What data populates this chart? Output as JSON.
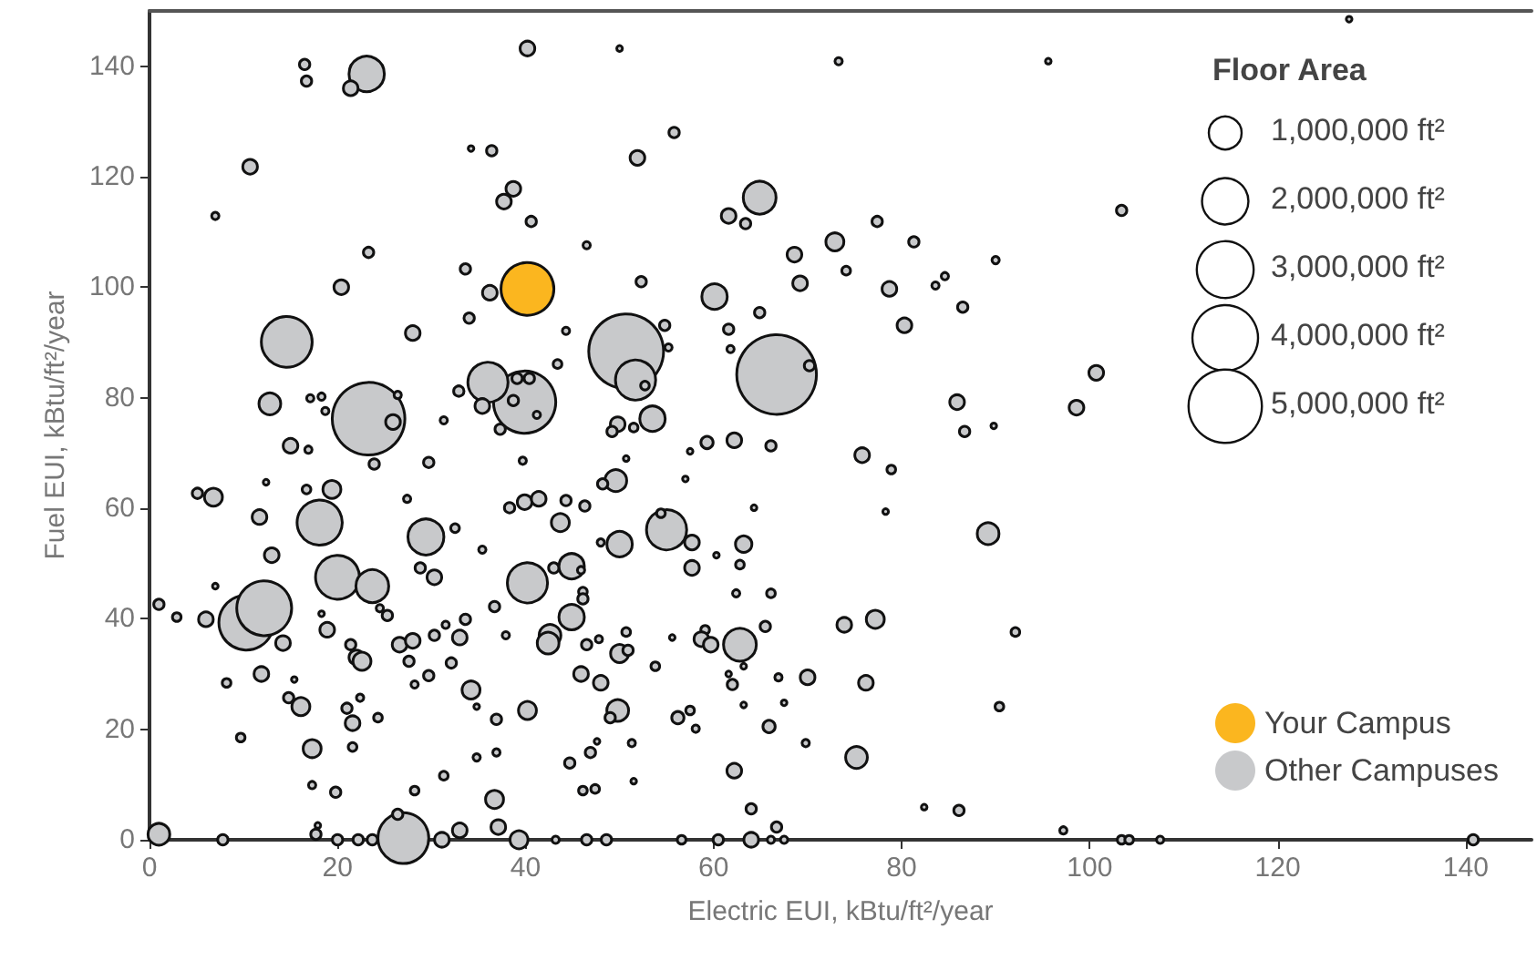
{
  "chart_data": {
    "type": "bubble",
    "xlabel": "Electric EUI, kBtu/ft²/year",
    "ylabel": "Fuel EUI, kBtu/ft²/year",
    "legend_title": "Floor Area",
    "legend": "bottom right",
    "marker": "circle",
    "xlim": [
      0,
      147
    ],
    "ylim": [
      0,
      150
    ],
    "xticks": [
      0,
      20,
      40,
      60,
      80,
      100,
      120,
      140
    ],
    "yticks": [
      0,
      20,
      40,
      60,
      80,
      100,
      120,
      140
    ],
    "size_legend": [
      {
        "value": 1000000,
        "label": "1,000,000 ft²"
      },
      {
        "value": 2000000,
        "label": "2,000,000 ft²"
      },
      {
        "value": 3000000,
        "label": "3,000,000 ft²"
      },
      {
        "value": 4000000,
        "label": "4,000,000 ft²"
      },
      {
        "value": 5000000,
        "label": "5,000,000 ft²"
      }
    ],
    "series": [
      {
        "name": "Other Campuses",
        "color": "#c8c9cb",
        "x": [
          66.7,
          50.7,
          23.3,
          39.9,
          10.3,
          12.2,
          14.6,
          27.0,
          18.1,
          20.0,
          55.0,
          51.7,
          40.2,
          36.0,
          29.4,
          23.1,
          64.9,
          23.7,
          62.8,
          16.5,
          16.7,
          21.4,
          40.2,
          10.7,
          7.0,
          34.2,
          36.4,
          38.7,
          37.7,
          40.6,
          46.5,
          23.3,
          33.6,
          20.4,
          36.2,
          34.0,
          28.0,
          44.3,
          43.4,
          39.1,
          40.4,
          12.8,
          17.1,
          18.3,
          26.4,
          32.9,
          38.7,
          35.4,
          41.2,
          25.9,
          31.3,
          37.3,
          18.7,
          50.0,
          73.3,
          95.6,
          55.8,
          51.9,
          61.6,
          63.4,
          77.4,
          72.9,
          81.3,
          90.0,
          103.4,
          68.6,
          74.1,
          69.2,
          78.7,
          83.6,
          84.6,
          52.3,
          60.1,
          64.9,
          61.6,
          86.5,
          80.3,
          61.8,
          54.8,
          55.2,
          52.7,
          70.2,
          100.7,
          85.9,
          98.6,
          86.7,
          89.8,
          53.5,
          49.8,
          51.5,
          49.2,
          15.0,
          16.9,
          23.9,
          29.7,
          39.7,
          19.4,
          12.4,
          5.1,
          6.8,
          11.7,
          16.7,
          27.4,
          32.5,
          38.3,
          39.9,
          41.4,
          44.3,
          46.3,
          43.7,
          13.0,
          28.8,
          30.3,
          35.4,
          43.0,
          44.9,
          45.9,
          7.0,
          1.0,
          2.9,
          6.0,
          14.2,
          18.3,
          18.9,
          24.5,
          25.3,
          21.4,
          22.0,
          22.6,
          26.6,
          28.0,
          30.3,
          33.0,
          33.6,
          31.5,
          32.1,
          27.6,
          29.7,
          28.2,
          11.9,
          8.2,
          15.4,
          14.8,
          16.1,
          21.0,
          21.6,
          22.4,
          24.3,
          34.2,
          34.8,
          36.9,
          40.2,
          36.7,
          37.9,
          42.6,
          42.4,
          44.9,
          46.1,
          46.1,
          46.5,
          45.9,
          48.0,
          9.7,
          17.3,
          21.6,
          17.3,
          19.8,
          28.2,
          31.3,
          34.8,
          36.9,
          36.7,
          37.1,
          44.7,
          46.9,
          46.1,
          47.4,
          1.0,
          7.8,
          17.9,
          17.7,
          26.4,
          20.0,
          22.2,
          23.7,
          31.1,
          33.0,
          39.3,
          43.2,
          46.5,
          48.6,
          59.3,
          62.2,
          66.1,
          57.5,
          50.7,
          57.0,
          49.6,
          48.2,
          75.8,
          78.9,
          78.3,
          64.3,
          54.4,
          50.0,
          48.0,
          57.7,
          57.7,
          60.3,
          63.2,
          62.8,
          62.4,
          66.1,
          89.2,
          73.9,
          77.2,
          92.1,
          59.1,
          58.7,
          59.7,
          65.5,
          55.6,
          50.7,
          50.0,
          50.9,
          47.8,
          53.8,
          63.2,
          61.6,
          62.0,
          66.9,
          70.0,
          76.2,
          49.8,
          49.0,
          56.2,
          57.5,
          58.1,
          63.2,
          67.5,
          65.9,
          69.8,
          51.3,
          47.6,
          51.5,
          62.2,
          75.2,
          90.4,
          64.0,
          66.7,
          82.4,
          86.1,
          97.2,
          64.0,
          56.6,
          60.5,
          66.1,
          67.5,
          103.4,
          104.2,
          107.5,
          140.8,
          127.6
        ],
        "values": [
          84.2,
          88.4,
          76.2,
          79.2,
          39.3,
          41.9,
          90.1,
          0.3,
          57.4,
          47.5,
          56.1,
          83.2,
          46.5,
          82.8,
          54.8,
          138.6,
          116.2,
          45.9,
          35.3,
          140.3,
          137.3,
          136.0,
          143.2,
          121.8,
          112.9,
          125.1,
          124.7,
          117.8,
          115.5,
          111.9,
          107.6,
          106.3,
          103.3,
          100.0,
          99.0,
          94.4,
          91.7,
          92.1,
          86.1,
          83.5,
          83.5,
          78.9,
          79.9,
          80.2,
          80.5,
          81.2,
          79.5,
          78.5,
          76.9,
          75.6,
          75.9,
          74.3,
          77.6,
          143.2,
          140.9,
          140.9,
          128.0,
          123.4,
          112.9,
          111.5,
          111.9,
          108.2,
          108.2,
          104.9,
          113.9,
          105.9,
          103.0,
          100.7,
          99.7,
          100.3,
          102.0,
          101.0,
          98.3,
          95.4,
          92.4,
          96.4,
          93.1,
          88.8,
          93.1,
          89.1,
          82.2,
          85.8,
          84.5,
          79.2,
          78.2,
          73.9,
          74.9,
          76.2,
          75.2,
          74.6,
          73.9,
          71.3,
          70.6,
          68.0,
          68.3,
          68.6,
          63.4,
          64.7,
          62.7,
          62.0,
          58.4,
          63.4,
          61.7,
          56.4,
          60.1,
          61.1,
          61.7,
          61.4,
          60.4,
          57.4,
          51.5,
          49.2,
          47.5,
          52.5,
          49.2,
          49.5,
          48.8,
          45.9,
          42.6,
          40.3,
          39.9,
          35.6,
          40.9,
          38.0,
          41.9,
          40.6,
          35.3,
          33.0,
          32.3,
          35.3,
          36.0,
          37.0,
          36.6,
          39.9,
          38.9,
          32.0,
          32.3,
          29.7,
          28.1,
          30.0,
          28.4,
          29.0,
          25.7,
          24.1,
          23.8,
          21.1,
          25.7,
          22.1,
          27.1,
          24.1,
          21.8,
          23.4,
          42.2,
          37.0,
          37.0,
          35.6,
          40.3,
          44.9,
          43.6,
          35.3,
          30.0,
          28.4,
          18.5,
          16.5,
          16.8,
          9.9,
          8.6,
          8.9,
          11.6,
          14.9,
          15.8,
          7.3,
          2.3,
          13.9,
          15.8,
          8.9,
          9.2,
          1.0,
          0,
          2.6,
          1.0,
          4.6,
          0,
          0,
          0,
          0,
          1.7,
          0,
          0,
          0,
          0,
          71.9,
          72.3,
          71.3,
          70.3,
          69.0,
          65.3,
          65.0,
          64.4,
          69.6,
          67.0,
          59.4,
          60.1,
          59.1,
          53.5,
          53.8,
          53.8,
          49.2,
          51.5,
          53.5,
          49.8,
          44.6,
          44.6,
          55.4,
          38.9,
          39.9,
          37.6,
          38.0,
          36.3,
          35.3,
          38.6,
          36.6,
          37.6,
          33.7,
          34.3,
          36.3,
          31.4,
          31.4,
          30.0,
          28.1,
          29.4,
          29.4,
          28.4,
          23.4,
          22.1,
          22.1,
          23.4,
          20.1,
          24.4,
          24.8,
          20.5,
          17.5,
          17.5,
          17.8,
          10.6,
          12.5,
          14.9,
          24.1,
          5.6,
          2.3,
          5.9,
          5.3,
          1.7,
          0,
          0,
          0,
          0,
          0,
          0,
          0,
          0,
          0,
          148.5
        ],
        "sizes": [
          5900000,
          5200000,
          4900000,
          3600000,
          2800000,
          2800000,
          2400000,
          2400000,
          1900000,
          1800000,
          1500000,
          1500000,
          1500000,
          1500000,
          1200000,
          1160000,
          1000000,
          1000000,
          1000000,
          100000,
          100000,
          200000,
          200000,
          200000,
          50000,
          30000,
          100000,
          200000,
          200000,
          100000,
          50000,
          100000,
          100000,
          200000,
          200000,
          100000,
          200000,
          50000,
          70000,
          100000,
          100000,
          440000,
          50000,
          50000,
          50000,
          100000,
          100000,
          200000,
          50000,
          200000,
          50000,
          100000,
          50000,
          30000,
          50000,
          30000,
          100000,
          200000,
          200000,
          100000,
          100000,
          300000,
          100000,
          50000,
          100000,
          200000,
          70000,
          200000,
          200000,
          50000,
          50000,
          100000,
          600000,
          100000,
          100000,
          100000,
          200000,
          50000,
          100000,
          50000,
          70000,
          100000,
          200000,
          200000,
          200000,
          100000,
          30000,
          600000,
          200000,
          70000,
          100000,
          200000,
          50000,
          100000,
          100000,
          50000,
          300000,
          30000,
          100000,
          300000,
          200000,
          70000,
          50000,
          70000,
          100000,
          200000,
          200000,
          100000,
          100000,
          300000,
          200000,
          100000,
          200000,
          50000,
          100000,
          600000,
          50000,
          30000,
          100000,
          70000,
          200000,
          200000,
          30000,
          200000,
          50000,
          100000,
          100000,
          200000,
          300000,
          200000,
          200000,
          100000,
          200000,
          100000,
          50000,
          100000,
          100000,
          100000,
          50000,
          200000,
          70000,
          30000,
          100000,
          300000,
          100000,
          200000,
          50000,
          70000,
          300000,
          30000,
          100000,
          300000,
          100000,
          50000,
          440000,
          440000,
          600000,
          70000,
          100000,
          100000,
          200000,
          200000,
          70000,
          300000,
          70000,
          50000,
          100000,
          70000,
          70000,
          50000,
          50000,
          300000,
          200000,
          100000,
          100000,
          70000,
          70000,
          440000,
          100000,
          30000,
          100000,
          100000,
          100000,
          100000,
          100000,
          200000,
          200000,
          300000,
          50000,
          100000,
          100000,
          140000,
          200000,
          100000,
          30000,
          30000,
          30000,
          440000,
          100000,
          200000,
          70000,
          30000,
          30000,
          70000,
          600000,
          50000,
          200000,
          200000,
          30000,
          250000,
          70000,
          50000,
          70000,
          440000,
          200000,
          300000,
          70000,
          70000,
          200000,
          200000,
          100000,
          30000,
          70000,
          300000,
          100000,
          50000,
          70000,
          30000,
          30000,
          100000,
          50000,
          200000,
          200000,
          440000,
          100000,
          140000,
          70000,
          50000,
          30000,
          30000,
          140000,
          50000,
          50000,
          30000,
          30000,
          200000,
          440000,
          70000,
          100000,
          100000,
          30000,
          100000,
          50000,
          200000,
          70000,
          100000,
          50000,
          50000,
          70000,
          70000,
          50000,
          100000,
          30000
        ]
      },
      {
        "name": "Your Campus",
        "color": "#fbb61f",
        "x": [
          40.2
        ],
        "values": [
          99.7
        ],
        "sizes": [
          2600000
        ]
      }
    ]
  }
}
